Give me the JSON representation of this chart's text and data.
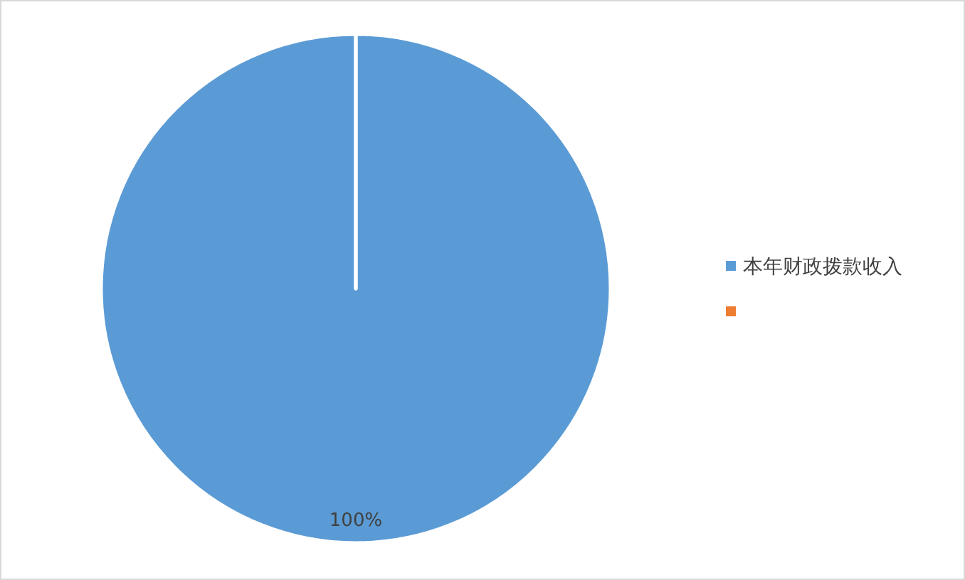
{
  "chart_data": {
    "type": "pie",
    "categories": [
      "本年财政拨款收入",
      null
    ],
    "values": [
      100,
      0
    ],
    "colors": [
      "#5b9bd5",
      "#ed7d31"
    ],
    "value_labels": [
      "100%",
      null
    ],
    "legend": "right"
  }
}
